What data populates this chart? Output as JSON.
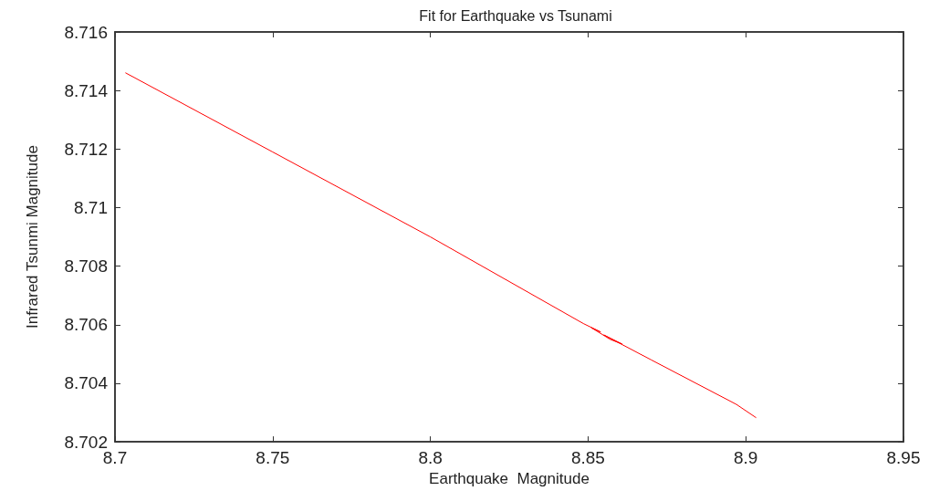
{
  "chart_data": {
    "type": "line",
    "title": "Fit for Earthquake vs Tsunami",
    "xlabel": "Earthquake  Magnitude",
    "ylabel": "Infrared Tsunmi Magnitude",
    "xlim": [
      8.7,
      8.95
    ],
    "xticks": [
      8.7,
      8.75,
      8.8,
      8.85,
      8.9,
      8.95
    ],
    "ylim": [
      8.702,
      8.716
    ],
    "yticks": [
      8.702,
      8.704,
      8.706,
      8.708,
      8.71,
      8.712,
      8.714,
      8.716
    ],
    "grid": false,
    "marker": "none",
    "line_style": "solid",
    "series": [
      {
        "color": "#ff0000",
        "x": [
          8.7034,
          8.75,
          8.8,
          8.8485,
          8.854,
          8.851,
          8.857,
          8.8608,
          8.855,
          8.87,
          8.897,
          8.9032
        ],
        "values": [
          8.7146,
          8.7119,
          8.709,
          8.70604,
          8.70575,
          8.7059,
          8.7055,
          8.70534,
          8.70565,
          8.7048,
          8.70328,
          8.70283
        ]
      }
    ]
  }
}
